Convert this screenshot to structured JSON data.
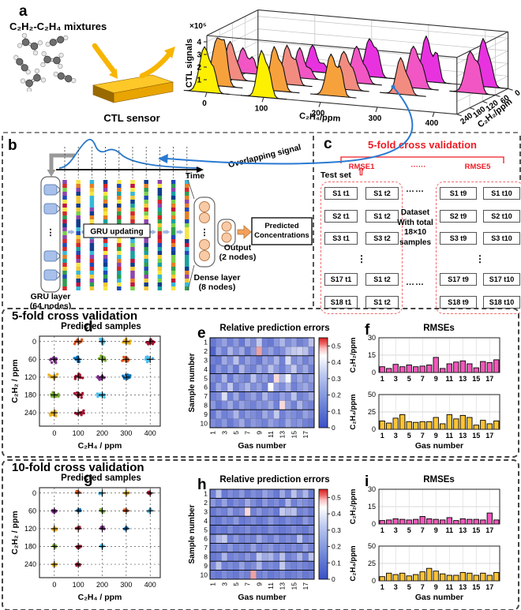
{
  "colors": {
    "red": "#ed1c24",
    "arrow_blue": "#2a7ad2",
    "bar_pink": "#f357bb",
    "bar_gold": "#fcc434",
    "heat_low": "#3a50c6",
    "heat_high": "#d41f1f",
    "sensor_gold": "#FFC829"
  },
  "panel_a": {
    "label": "a",
    "mixtures_label": "C₂H₂-C₂H₄ mixtures",
    "sensor_label": "CTL sensor",
    "overlap_arrow": "overlapping-signal-arrow",
    "ridge": {
      "type": "ridgeline-3d",
      "ylabel": "CTL signals",
      "y_scale_label": "×10⁵",
      "y_ticks": [
        1,
        2,
        3,
        4
      ],
      "xlabel": "C₂H₄/ppm",
      "x_ticks": [
        0,
        100,
        200,
        300,
        400
      ],
      "zlabel": "C₂H₂/ppm",
      "z_ticks": [
        0,
        60,
        120,
        180,
        240
      ],
      "rows": [
        {
          "c2h2": 0,
          "color": "#e832e0",
          "peaks": [
            {
              "c2h4": 100,
              "h": 2.1
            },
            {
              "c2h4": 200,
              "h": 3.0
            },
            {
              "c2h4": 300,
              "h": 3.6
            },
            {
              "c2h4": 400,
              "h": 3.8
            }
          ]
        },
        {
          "c2h2": 60,
          "color": "#f156c4",
          "peaks": [
            {
              "c2h4": 0,
              "h": 2.0
            },
            {
              "c2h4": 100,
              "h": 2.4
            },
            {
              "c2h4": 200,
              "h": 2.9
            },
            {
              "c2h4": 300,
              "h": 3.3
            },
            {
              "c2h4": 400,
              "h": 3.3
            }
          ]
        },
        {
          "c2h2": 120,
          "color": "#f28c80",
          "peaks": [
            {
              "c2h4": 0,
              "h": 3.0
            },
            {
              "c2h4": 100,
              "h": 3.1
            },
            {
              "c2h4": 200,
              "h": 3.0
            },
            {
              "c2h4": 300,
              "h": 2.9
            }
          ]
        },
        {
          "c2h2": 180,
          "color": "#f7a13d",
          "peaks": [
            {
              "c2h4": 0,
              "h": 3.8
            },
            {
              "c2h4": 100,
              "h": 3.5
            },
            {
              "c2h4": 200,
              "h": 3.3
            }
          ]
        },
        {
          "c2h2": 240,
          "color": "#fdf000",
          "peaks": [
            {
              "c2h4": 0,
              "h": 3.6
            },
            {
              "c2h4": 100,
              "h": 3.7
            }
          ]
        }
      ]
    }
  },
  "panel_b": {
    "label": "b",
    "overlap_label": "Overlapping signal",
    "time_label": "Time",
    "gru_updating_label": "GRU updating",
    "gru_layer_label_1": "GRU layer",
    "gru_layer_label_2": "(64 nodes)",
    "dense_label_1": "Dense layer",
    "dense_label_2": "(8 nodes)",
    "output_label_1": "Output",
    "output_label_2": "(2 nodes)",
    "predicted_label_1": "Predicted",
    "predicted_label_2": "Concentrations"
  },
  "panel_c": {
    "label": "c",
    "title": "5-fold cross validation",
    "rmse_first": "RMSE1",
    "rmse_dots": "······",
    "rmse_last": "RMSE5",
    "test_set_label": "Test set",
    "test_set_arrow": "⇧",
    "fold1_rows": [
      [
        "S1 t1",
        "S1 t2"
      ],
      [
        "S2 t1",
        "S1 t2"
      ],
      [
        "S3 t1",
        "S3 t2"
      ],
      [
        "⋮"
      ],
      [
        "S17 t1",
        "S1 t2"
      ],
      [
        "S18 t1",
        "S1 t2"
      ]
    ],
    "fold5_rows": [
      [
        "S1 t9",
        "S1 t10"
      ],
      [
        "S2 t9",
        "S2 t10"
      ],
      [
        "S3 t9",
        "S3 t10"
      ],
      [
        "⋮"
      ],
      [
        "S17 t9",
        "S17 t10"
      ],
      [
        "S18 t9",
        "S18 t10"
      ]
    ],
    "dots_top": "……",
    "dataset_lines": [
      "Dataset",
      "With total",
      "18×10",
      "samples"
    ],
    "dots_bottom": "……"
  },
  "sections": {
    "five": {
      "title": "5-fold cross validation"
    },
    "ten": {
      "title": "10-fold cross validation"
    }
  },
  "panel_d": {
    "label": "d",
    "title": "Predicted samples",
    "chart_data": {
      "type": "scatter",
      "xlabel": "C₂H₄ / ppm",
      "ylabel": "C₂H₂ / ppm",
      "x_ticks": [
        0,
        100,
        200,
        300,
        400
      ],
      "y_ticks": [
        0,
        60,
        120,
        180,
        240
      ],
      "xlim": [
        -62,
        442
      ],
      "ylim": [
        -18,
        285
      ],
      "points_per_cluster": 12,
      "spread": {
        "x": 22,
        "y": 11
      },
      "clusters": [
        {
          "c2h4": 100,
          "c2h2": 0,
          "color": "#D95319"
        },
        {
          "c2h4": 200,
          "c2h2": 0,
          "color": "#4DBEEE"
        },
        {
          "c2h4": 300,
          "c2h2": 0,
          "color": "#EDB120"
        },
        {
          "c2h4": 400,
          "c2h2": 0,
          "color": "#A2142F"
        },
        {
          "c2h4": 0,
          "c2h2": 60,
          "color": "#7E2F8E"
        },
        {
          "c2h4": 100,
          "c2h2": 60,
          "color": "#0072BD"
        },
        {
          "c2h4": 200,
          "c2h2": 60,
          "color": "#77AC30"
        },
        {
          "c2h4": 300,
          "c2h2": 60,
          "color": "#D95319"
        },
        {
          "c2h4": 400,
          "c2h2": 60,
          "color": "#4DBEEE"
        },
        {
          "c2h4": 0,
          "c2h2": 120,
          "color": "#EDB120"
        },
        {
          "c2h4": 100,
          "c2h2": 120,
          "color": "#A2142F"
        },
        {
          "c2h4": 200,
          "c2h2": 120,
          "color": "#7E2F8E"
        },
        {
          "c2h4": 300,
          "c2h2": 120,
          "color": "#0072BD"
        },
        {
          "c2h4": 0,
          "c2h2": 180,
          "color": "#77AC30"
        },
        {
          "c2h4": 100,
          "c2h2": 180,
          "color": "#A2142F"
        },
        {
          "c2h4": 200,
          "c2h2": 180,
          "color": "#4DBEEE"
        },
        {
          "c2h4": 0,
          "c2h2": 240,
          "color": "#EDB120"
        },
        {
          "c2h4": 100,
          "c2h2": 240,
          "color": "#A2142F"
        }
      ]
    }
  },
  "panel_e": {
    "label": "e",
    "title": "Relative prediction errors",
    "chart_data": {
      "type": "heatmap",
      "xlabel": "Gas number",
      "ylabel": "Sample number",
      "x_ticks": [
        1,
        3,
        5,
        7,
        9,
        11,
        13,
        15,
        17
      ],
      "y_ticks": [
        1,
        2,
        3,
        4,
        5,
        6,
        7,
        8,
        9,
        10
      ],
      "colorbar_ticks": [
        0,
        0.1,
        0.2,
        0.3,
        0.4,
        0.5
      ],
      "vmax": 0.55,
      "fold_lines_every": 2,
      "values": [
        [
          0.1,
          0.15,
          0.2,
          0.12,
          0.18,
          0.1,
          0.22,
          0.15,
          0.3,
          0.12,
          0.1,
          0.18,
          0.25,
          0.15,
          0.2,
          0.12,
          0.15,
          0.28
        ],
        [
          0.05,
          0.2,
          0.12,
          0.25,
          0.15,
          0.22,
          0.1,
          0.18,
          0.48,
          0.15,
          0.2,
          0.12,
          0.15,
          0.25,
          0.3,
          0.32,
          0.28,
          0.15
        ],
        [
          0.12,
          0.1,
          0.22,
          0.15,
          0.28,
          0.12,
          0.2,
          0.15,
          0.1,
          0.2,
          0.15,
          0.25,
          0.12,
          0.35,
          0.15,
          0.2,
          0.12,
          0.18
        ],
        [
          0.08,
          0.18,
          0.12,
          0.2,
          0.1,
          0.25,
          0.15,
          0.12,
          0.22,
          0.15,
          0.28,
          0.18,
          0.12,
          0.2,
          0.3,
          0.15,
          0.22,
          0.12
        ],
        [
          0.15,
          0.12,
          0.25,
          0.1,
          0.2,
          0.15,
          0.12,
          0.28,
          0.15,
          0.2,
          0.12,
          0.45,
          0.25,
          0.4,
          0.15,
          0.22,
          0.15,
          0.2
        ],
        [
          0.1,
          0.22,
          0.15,
          0.3,
          0.12,
          0.18,
          0.25,
          0.15,
          0.2,
          0.12,
          0.42,
          0.2,
          0.15,
          0.25,
          0.12,
          0.18,
          0.22,
          0.15
        ],
        [
          0.12,
          0.15,
          0.35,
          0.12,
          0.22,
          0.1,
          0.15,
          0.2,
          0.12,
          0.25,
          0.15,
          0.12,
          0.2,
          0.15,
          0.28,
          0.12,
          0.15,
          0.22
        ],
        [
          0.18,
          0.1,
          0.15,
          0.22,
          0.12,
          0.2,
          0.15,
          0.12,
          0.18,
          0.15,
          0.22,
          0.12,
          0.45,
          0.2,
          0.12,
          0.25,
          0.15,
          0.12
        ],
        [
          0.1,
          0.2,
          0.12,
          0.15,
          0.25,
          0.12,
          0.18,
          0.15,
          0.12,
          0.22,
          0.15,
          0.3,
          0.12,
          0.18,
          0.15,
          0.12,
          0.2,
          0.15
        ],
        [
          0.15,
          0.12,
          0.18,
          0.1,
          0.15,
          0.22,
          0.12,
          0.18,
          0.15,
          0.12,
          0.2,
          0.15,
          0.12,
          0.22,
          0.15,
          0.18,
          0.12,
          0.1
        ]
      ]
    }
  },
  "panel_f": {
    "label": "f",
    "title": "RMSEs",
    "chart_data": {
      "type": "bar",
      "xlabel": "Gas number",
      "categories": [
        1,
        2,
        3,
        4,
        5,
        6,
        7,
        8,
        9,
        10,
        11,
        12,
        13,
        14,
        15,
        16,
        17,
        18
      ],
      "x_ticks": [
        1,
        3,
        5,
        7,
        9,
        11,
        13,
        15,
        17
      ],
      "series": [
        {
          "name": "C₂H₂/ppm",
          "color": "#f357bb",
          "ylim": [
            0,
            30
          ],
          "y_ticks": [
            0,
            15,
            30
          ],
          "values": [
            5,
            3.5,
            7,
            5,
            6.5,
            5,
            5.5,
            6.5,
            13,
            3.5,
            7.5,
            9,
            10,
            7.5,
            4,
            9.5,
            8.5,
            11
          ]
        },
        {
          "name": "C₂H₄/ppm",
          "color": "#fcc434",
          "ylim": [
            0,
            50
          ],
          "y_ticks": [
            0,
            25,
            50
          ],
          "values": [
            12,
            9,
            16,
            21,
            11,
            10,
            11,
            11,
            17,
            8,
            21,
            15,
            20,
            17,
            6,
            13,
            8,
            12
          ]
        }
      ]
    }
  },
  "panel_g": {
    "label": "g",
    "title": "Predicted samples",
    "chart_data": {
      "type": "scatter",
      "xlabel": "C₂H₄ / ppm",
      "ylabel": "C₂H₂ / ppm",
      "x_ticks": [
        0,
        100,
        200,
        300,
        400
      ],
      "y_ticks": [
        0,
        60,
        120,
        180,
        240
      ],
      "xlim": [
        -62,
        442
      ],
      "ylim": [
        -18,
        285
      ],
      "points_per_cluster": 10,
      "spread": {
        "x": 10,
        "y": 5
      },
      "clusters": [
        {
          "c2h4": 100,
          "c2h2": 0,
          "color": "#D95319"
        },
        {
          "c2h4": 200,
          "c2h2": 0,
          "color": "#4DBEEE"
        },
        {
          "c2h4": 300,
          "c2h2": 0,
          "color": "#EDB120"
        },
        {
          "c2h4": 400,
          "c2h2": 0,
          "color": "#A2142F"
        },
        {
          "c2h4": 0,
          "c2h2": 60,
          "color": "#7E2F8E"
        },
        {
          "c2h4": 100,
          "c2h2": 60,
          "color": "#0072BD"
        },
        {
          "c2h4": 200,
          "c2h2": 60,
          "color": "#77AC30"
        },
        {
          "c2h4": 300,
          "c2h2": 60,
          "color": "#D95319"
        },
        {
          "c2h4": 400,
          "c2h2": 60,
          "color": "#4DBEEE"
        },
        {
          "c2h4": 0,
          "c2h2": 120,
          "color": "#EDB120"
        },
        {
          "c2h4": 100,
          "c2h2": 120,
          "color": "#A2142F"
        },
        {
          "c2h4": 200,
          "c2h2": 120,
          "color": "#7E2F8E"
        },
        {
          "c2h4": 300,
          "c2h2": 120,
          "color": "#0072BD"
        },
        {
          "c2h4": 0,
          "c2h2": 180,
          "color": "#77AC30"
        },
        {
          "c2h4": 100,
          "c2h2": 180,
          "color": "#A2142F"
        },
        {
          "c2h4": 200,
          "c2h2": 180,
          "color": "#4DBEEE"
        },
        {
          "c2h4": 0,
          "c2h2": 240,
          "color": "#EDB120"
        },
        {
          "c2h4": 100,
          "c2h2": 240,
          "color": "#A2142F"
        }
      ]
    }
  },
  "panel_h": {
    "label": "h",
    "title": "Relative prediction errors",
    "chart_data": {
      "type": "heatmap",
      "xlabel": "Gas number",
      "ylabel": "Sample number",
      "x_ticks": [
        1,
        3,
        5,
        7,
        9,
        11,
        13,
        15,
        17
      ],
      "y_ticks": [
        1,
        2,
        3,
        4,
        5,
        6,
        7,
        8,
        9,
        10
      ],
      "colorbar_ticks": [
        0,
        0.1,
        0.2,
        0.3,
        0.4,
        0.5
      ],
      "vmax": 0.55,
      "fold_lines_every": 1,
      "values": [
        [
          0.12,
          0.28,
          0.1,
          0.15,
          0.12,
          0.18,
          0.1,
          0.15,
          0.12,
          0.2,
          0.15,
          0.1,
          0.22,
          0.12,
          0.28,
          0.15,
          0.25,
          0.1
        ],
        [
          0.18,
          0.12,
          0.2,
          0.1,
          0.15,
          0.12,
          0.22,
          0.15,
          0.1,
          0.18,
          0.12,
          0.15,
          0.1,
          0.25,
          0.12,
          0.18,
          0.15,
          0.12
        ],
        [
          0.1,
          0.15,
          0.12,
          0.2,
          0.12,
          0.15,
          0.45,
          0.12,
          0.18,
          0.12,
          0.15,
          0.1,
          0.3,
          0.25,
          0.28,
          0.12,
          0.15,
          0.1
        ],
        [
          0.12,
          0.1,
          0.15,
          0.12,
          0.18,
          0.1,
          0.12,
          0.15,
          0.1,
          0.12,
          0.18,
          0.12,
          0.1,
          0.15,
          0.12,
          0.1,
          0.18,
          0.12
        ],
        [
          0.08,
          0.12,
          0.1,
          0.15,
          0.1,
          0.12,
          0.15,
          0.1,
          0.12,
          0.1,
          0.15,
          0.12,
          0.1,
          0.12,
          0.15,
          0.12,
          0.1,
          0.15
        ],
        [
          0.15,
          0.25,
          0.3,
          0.12,
          0.18,
          0.12,
          0.15,
          0.12,
          0.22,
          0.15,
          0.12,
          0.18,
          0.12,
          0.15,
          0.12,
          0.28,
          0.12,
          0.15
        ],
        [
          0.12,
          0.15,
          0.12,
          0.18,
          0.12,
          0.15,
          0.12,
          0.2,
          0.12,
          0.15,
          0.18,
          0.12,
          0.15,
          0.12,
          0.15,
          0.12,
          0.2,
          0.12
        ],
        [
          0.1,
          0.12,
          0.25,
          0.12,
          0.15,
          0.12,
          0.18,
          0.12,
          0.3,
          0.22,
          0.25,
          0.15,
          0.28,
          0.12,
          0.15,
          0.25,
          0.12,
          0.28
        ],
        [
          0.15,
          0.28,
          0.12,
          0.15,
          0.12,
          0.2,
          0.12,
          0.15,
          0.25,
          0.12,
          0.15,
          0.12,
          0.3,
          0.15,
          0.12,
          0.15,
          0.12,
          0.1
        ],
        [
          0.12,
          0.1,
          0.15,
          0.12,
          0.1,
          0.15,
          0.12,
          0.48,
          0.12,
          0.15,
          0.1,
          0.12,
          0.15,
          0.1,
          0.12,
          0.15,
          0.1,
          0.12
        ]
      ]
    }
  },
  "panel_i": {
    "label": "i",
    "title": "RMSEs",
    "chart_data": {
      "type": "bar",
      "xlabel": "Gas number",
      "categories": [
        1,
        2,
        3,
        4,
        5,
        6,
        7,
        8,
        9,
        10,
        11,
        12,
        13,
        14,
        15,
        16,
        17,
        18
      ],
      "x_ticks": [
        1,
        3,
        5,
        7,
        9,
        11,
        13,
        15,
        17
      ],
      "series": [
        {
          "name": "C₂H₂/ppm",
          "color": "#f357bb",
          "ylim": [
            0,
            30
          ],
          "y_ticks": [
            0,
            15,
            30
          ],
          "values": [
            3,
            3.5,
            4.5,
            4,
            3.5,
            4,
            6.5,
            4.5,
            4,
            3.5,
            5.5,
            3,
            4.5,
            4,
            4,
            3.5,
            9.5,
            3.5
          ]
        },
        {
          "name": "C₂H₄/ppm",
          "color": "#fcc434",
          "ylim": [
            0,
            50
          ],
          "y_ticks": [
            0,
            25,
            50
          ],
          "values": [
            6,
            11,
            9,
            11,
            7,
            9,
            13,
            18,
            14,
            10,
            8,
            8,
            12,
            11,
            8,
            11,
            8,
            12
          ]
        }
      ]
    }
  }
}
